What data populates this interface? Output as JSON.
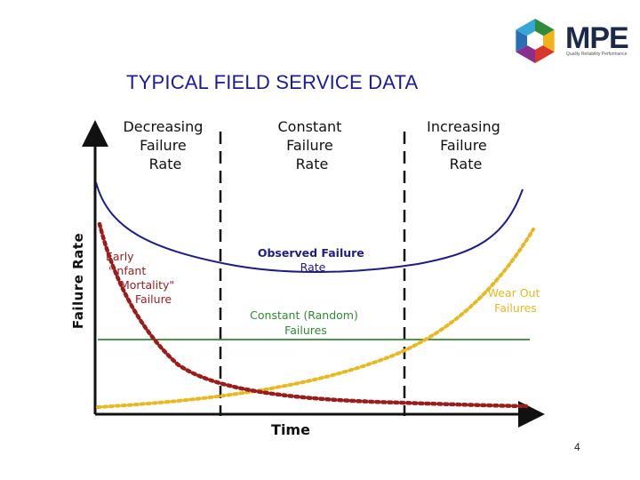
{
  "slide": {
    "title": "TYPICAL FIELD SERVICE DATA",
    "page_number": "4"
  },
  "logo": {
    "text": "MPE",
    "tagline": "Quality Reliability Performance",
    "colors": [
      "#2e8b3a",
      "#f2b21a",
      "#d8372b",
      "#8b2f8f",
      "#2a6fb5",
      "#36a6d8"
    ]
  },
  "diagram": {
    "y_axis_label": "Failure Rate",
    "x_axis_label": "Time",
    "regions": [
      {
        "lines": [
          "Decreasing",
          "Failure",
          "Rate"
        ]
      },
      {
        "lines": [
          "Constant",
          "Failure",
          "Rate"
        ]
      },
      {
        "lines": [
          "Increasing",
          "Failure",
          "Rate"
        ]
      }
    ],
    "curve_labels": {
      "infant_mortality": [
        "Early",
        "\"Infant",
        "Mortality\"",
        "Failure"
      ],
      "observed": [
        "Observed Failure",
        "Rate"
      ],
      "constant": [
        "Constant (Random)",
        "Failures"
      ],
      "wear_out": [
        "Wear Out",
        "Failures"
      ]
    },
    "colors": {
      "observed": "#1c1c8a",
      "infant_mortality": "#9b1c1c",
      "wear_out": "#e8b820",
      "constant": "#2e8b2e",
      "axes": "#111111"
    }
  }
}
